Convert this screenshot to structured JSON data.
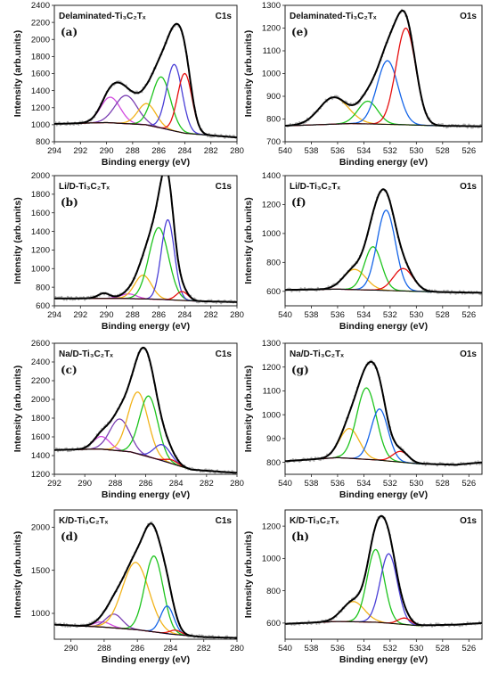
{
  "chart_data": [
    {
      "id": "a",
      "letter": "(a)",
      "sample": "Delaminated-Ti₃C₂Tₓ",
      "core": "C1s",
      "type": "line",
      "xlabel": "Binding energy (eV)",
      "ylabel": "Intensity (arb.units)",
      "xlim": [
        294,
        280
      ],
      "ylim": [
        800,
        2400
      ],
      "xticks": [
        294,
        292,
        290,
        288,
        286,
        284,
        282,
        280
      ],
      "yticks": [
        800,
        1000,
        1200,
        1400,
        1600,
        1800,
        2000,
        2200,
        2400
      ],
      "background": [
        [
          294,
          1010
        ],
        [
          290,
          1025
        ],
        [
          287,
          1000
        ],
        [
          284,
          900
        ],
        [
          280,
          850
        ]
      ],
      "peaks": [
        {
          "center": 289.7,
          "height": 300,
          "width": 0.75,
          "color": "#d24be0"
        },
        {
          "center": 288.5,
          "height": 330,
          "width": 0.85,
          "color": "#7a3fb3"
        },
        {
          "center": 286.9,
          "height": 250,
          "width": 0.7,
          "color": "#f2b31a"
        },
        {
          "center": 285.8,
          "height": 600,
          "width": 0.7,
          "color": "#1dc41d"
        },
        {
          "center": 284.8,
          "height": 780,
          "width": 0.6,
          "color": "#4a3fd6"
        },
        {
          "center": 284.0,
          "height": 700,
          "width": 0.55,
          "color": "#e60f0f"
        }
      ]
    },
    {
      "id": "e",
      "letter": "(e)",
      "sample": "Delaminated-Ti₃C₂Tₓ",
      "core": "O1s",
      "type": "line",
      "xlabel": "Binding energy (eV)",
      "ylabel": "Intensity (arb.units)",
      "xlim": [
        540,
        525
      ],
      "ylim": [
        700,
        1300
      ],
      "xticks": [
        540,
        538,
        536,
        534,
        532,
        530,
        528,
        526
      ],
      "yticks": [
        700,
        800,
        900,
        1000,
        1100,
        1200,
        1300
      ],
      "background": [
        [
          540,
          770
        ],
        [
          535,
          780
        ],
        [
          531,
          775
        ],
        [
          528,
          770
        ],
        [
          525,
          768
        ]
      ],
      "peaks": [
        {
          "center": 536.3,
          "height": 118,
          "width": 1.1,
          "color": "#f2b31a"
        },
        {
          "center": 533.7,
          "height": 100,
          "width": 0.75,
          "color": "#1dc41d"
        },
        {
          "center": 532.2,
          "height": 280,
          "width": 0.8,
          "color": "#1565e8"
        },
        {
          "center": 530.8,
          "height": 425,
          "width": 0.75,
          "color": "#e60f0f"
        }
      ]
    },
    {
      "id": "b",
      "letter": "(b)",
      "sample": "Li/D-Ti₃C₂Tₓ",
      "core": "C1s",
      "type": "line",
      "xlabel": "Binding energy (eV)",
      "ylabel": "Intensity (arb.units)",
      "xlim": [
        294,
        280
      ],
      "ylim": [
        600,
        2000
      ],
      "xticks": [
        294,
        292,
        290,
        288,
        286,
        284,
        282,
        280
      ],
      "yticks": [
        600,
        800,
        1000,
        1200,
        1400,
        1600,
        1800,
        2000
      ],
      "background": [
        [
          294,
          680
        ],
        [
          289,
          680
        ],
        [
          286,
          670
        ],
        [
          283,
          650
        ],
        [
          280,
          640
        ]
      ],
      "peaks": [
        {
          "center": 290.2,
          "height": 55,
          "width": 0.45,
          "color": "#7a3fb3"
        },
        {
          "center": 288.3,
          "height": 50,
          "width": 0.6,
          "color": "#d24be0"
        },
        {
          "center": 287.2,
          "height": 255,
          "width": 0.65,
          "color": "#f2b31a"
        },
        {
          "center": 286.0,
          "height": 770,
          "width": 0.75,
          "color": "#1dc41d"
        },
        {
          "center": 285.3,
          "height": 860,
          "width": 0.5,
          "color": "#4a3fd6"
        },
        {
          "center": 284.2,
          "height": 95,
          "width": 0.45,
          "color": "#e60f0f"
        }
      ]
    },
    {
      "id": "f",
      "letter": "(f)",
      "sample": "Li/D-Ti₃C₂Tₓ",
      "core": "O1s",
      "type": "line",
      "xlabel": "Binding energy (eV)",
      "ylabel": "Intensity (arb.units)",
      "xlim": [
        540,
        525
      ],
      "ylim": [
        500,
        1400
      ],
      "xticks": [
        540,
        538,
        536,
        534,
        532,
        530,
        528,
        526
      ],
      "yticks": [
        600,
        800,
        1000,
        1200,
        1400
      ],
      "background": [
        [
          540,
          610
        ],
        [
          536,
          615
        ],
        [
          532,
          605
        ],
        [
          528,
          595
        ],
        [
          525,
          590
        ]
      ],
      "peaks": [
        {
          "center": 534.7,
          "height": 140,
          "width": 0.85,
          "color": "#f2b31a"
        },
        {
          "center": 533.3,
          "height": 300,
          "width": 0.65,
          "color": "#1dc41d"
        },
        {
          "center": 532.3,
          "height": 555,
          "width": 0.7,
          "color": "#1565e8"
        },
        {
          "center": 531.0,
          "height": 155,
          "width": 0.75,
          "color": "#e60f0f"
        }
      ]
    },
    {
      "id": "c",
      "letter": "(c)",
      "sample": "Na/D-Ti₃C₂Tₓ",
      "core": "C1s",
      "type": "line",
      "xlabel": "Binding energy (eV)",
      "ylabel": "Intensity (arb.units)",
      "xlim": [
        292,
        280
      ],
      "ylim": [
        1200,
        2600
      ],
      "xticks": [
        292,
        290,
        288,
        286,
        284,
        282,
        280
      ],
      "yticks": [
        1200,
        1400,
        1600,
        1800,
        2000,
        2200,
        2400,
        2600
      ],
      "background": [
        [
          292,
          1460
        ],
        [
          289,
          1470
        ],
        [
          287,
          1440
        ],
        [
          285,
          1350
        ],
        [
          283,
          1250
        ],
        [
          280,
          1215
        ]
      ],
      "peaks": [
        {
          "center": 288.9,
          "height": 135,
          "width": 0.55,
          "color": "#d24be0"
        },
        {
          "center": 287.7,
          "height": 340,
          "width": 0.65,
          "color": "#7a3fb3"
        },
        {
          "center": 286.5,
          "height": 660,
          "width": 0.65,
          "color": "#f2b31a"
        },
        {
          "center": 285.8,
          "height": 650,
          "width": 0.6,
          "color": "#1dc41d"
        },
        {
          "center": 284.9,
          "height": 170,
          "width": 0.55,
          "color": "#4a3fd6"
        },
        {
          "center": 284.3,
          "height": 40,
          "width": 0.4,
          "color": "#e60f0f"
        }
      ]
    },
    {
      "id": "g",
      "letter": "(g)",
      "sample": "Na/D-Ti₃C₂Tₓ",
      "core": "O1s",
      "type": "line",
      "xlabel": "Binding energy (eV)",
      "ylabel": "Intensity (arb.units)",
      "xlim": [
        540,
        525
      ],
      "ylim": [
        750,
        1300
      ],
      "xticks": [
        540,
        538,
        536,
        534,
        532,
        530,
        528,
        526
      ],
      "yticks": [
        800,
        900,
        1000,
        1100,
        1200,
        1300
      ],
      "background": [
        [
          540,
          805
        ],
        [
          536,
          820
        ],
        [
          533,
          810
        ],
        [
          530,
          795
        ],
        [
          527,
          790
        ],
        [
          525,
          800
        ]
      ],
      "peaks": [
        {
          "center": 535.1,
          "height": 125,
          "width": 0.75,
          "color": "#f2b31a"
        },
        {
          "center": 533.8,
          "height": 300,
          "width": 0.75,
          "color": "#1dc41d"
        },
        {
          "center": 532.8,
          "height": 215,
          "width": 0.65,
          "color": "#1565e8"
        },
        {
          "center": 531.2,
          "height": 45,
          "width": 0.6,
          "color": "#e60f0f"
        }
      ]
    },
    {
      "id": "d",
      "letter": "(d)",
      "sample": "K/D-Ti₃C₂Tₓ",
      "core": "C1s",
      "type": "line",
      "xlabel": "Binding energy (eV)",
      "ylabel": "Intensity (arb.units)",
      "xlim": [
        291,
        280
      ],
      "ylim": [
        700,
        2200
      ],
      "xticks": [
        290,
        288,
        286,
        284,
        282,
        280
      ],
      "yticks": [
        1000,
        1500,
        2000
      ],
      "background": [
        [
          291,
          870
        ],
        [
          288,
          840
        ],
        [
          286,
          810
        ],
        [
          284,
          760
        ],
        [
          282,
          725
        ],
        [
          280,
          715
        ]
      ],
      "peaks": [
        {
          "center": 288.1,
          "height": 60,
          "width": 0.5,
          "color": "#d24be0"
        },
        {
          "center": 287.4,
          "height": 160,
          "width": 0.5,
          "color": "#7a3fb3"
        },
        {
          "center": 286.1,
          "height": 780,
          "width": 0.8,
          "color": "#f2b31a"
        },
        {
          "center": 285.0,
          "height": 880,
          "width": 0.55,
          "color": "#1dc41d"
        },
        {
          "center": 284.2,
          "height": 320,
          "width": 0.4,
          "color": "#1565e8"
        },
        {
          "center": 283.7,
          "height": 50,
          "width": 0.35,
          "color": "#e60f0f"
        }
      ]
    },
    {
      "id": "h",
      "letter": "(h)",
      "sample": "K/D-Ti₃C₂Tₓ",
      "core": "O1s",
      "type": "line",
      "xlabel": "Binding energy (eV)",
      "ylabel": "Intensity (arb.units)",
      "xlim": [
        540,
        525
      ],
      "ylim": [
        500,
        1300
      ],
      "xticks": [
        540,
        538,
        536,
        534,
        532,
        530,
        528,
        526
      ],
      "yticks": [
        600,
        800,
        1000,
        1200
      ],
      "background": [
        [
          540,
          595
        ],
        [
          536,
          610
        ],
        [
          533,
          605
        ],
        [
          530,
          585
        ],
        [
          527,
          590
        ],
        [
          525,
          600
        ]
      ],
      "peaks": [
        {
          "center": 534.8,
          "height": 125,
          "width": 0.85,
          "color": "#f2b31a"
        },
        {
          "center": 533.1,
          "height": 450,
          "width": 0.65,
          "color": "#1dc41d"
        },
        {
          "center": 532.1,
          "height": 430,
          "width": 0.65,
          "color": "#4a3fd6"
        },
        {
          "center": 530.9,
          "height": 40,
          "width": 0.5,
          "color": "#e60f0f"
        }
      ]
    }
  ]
}
